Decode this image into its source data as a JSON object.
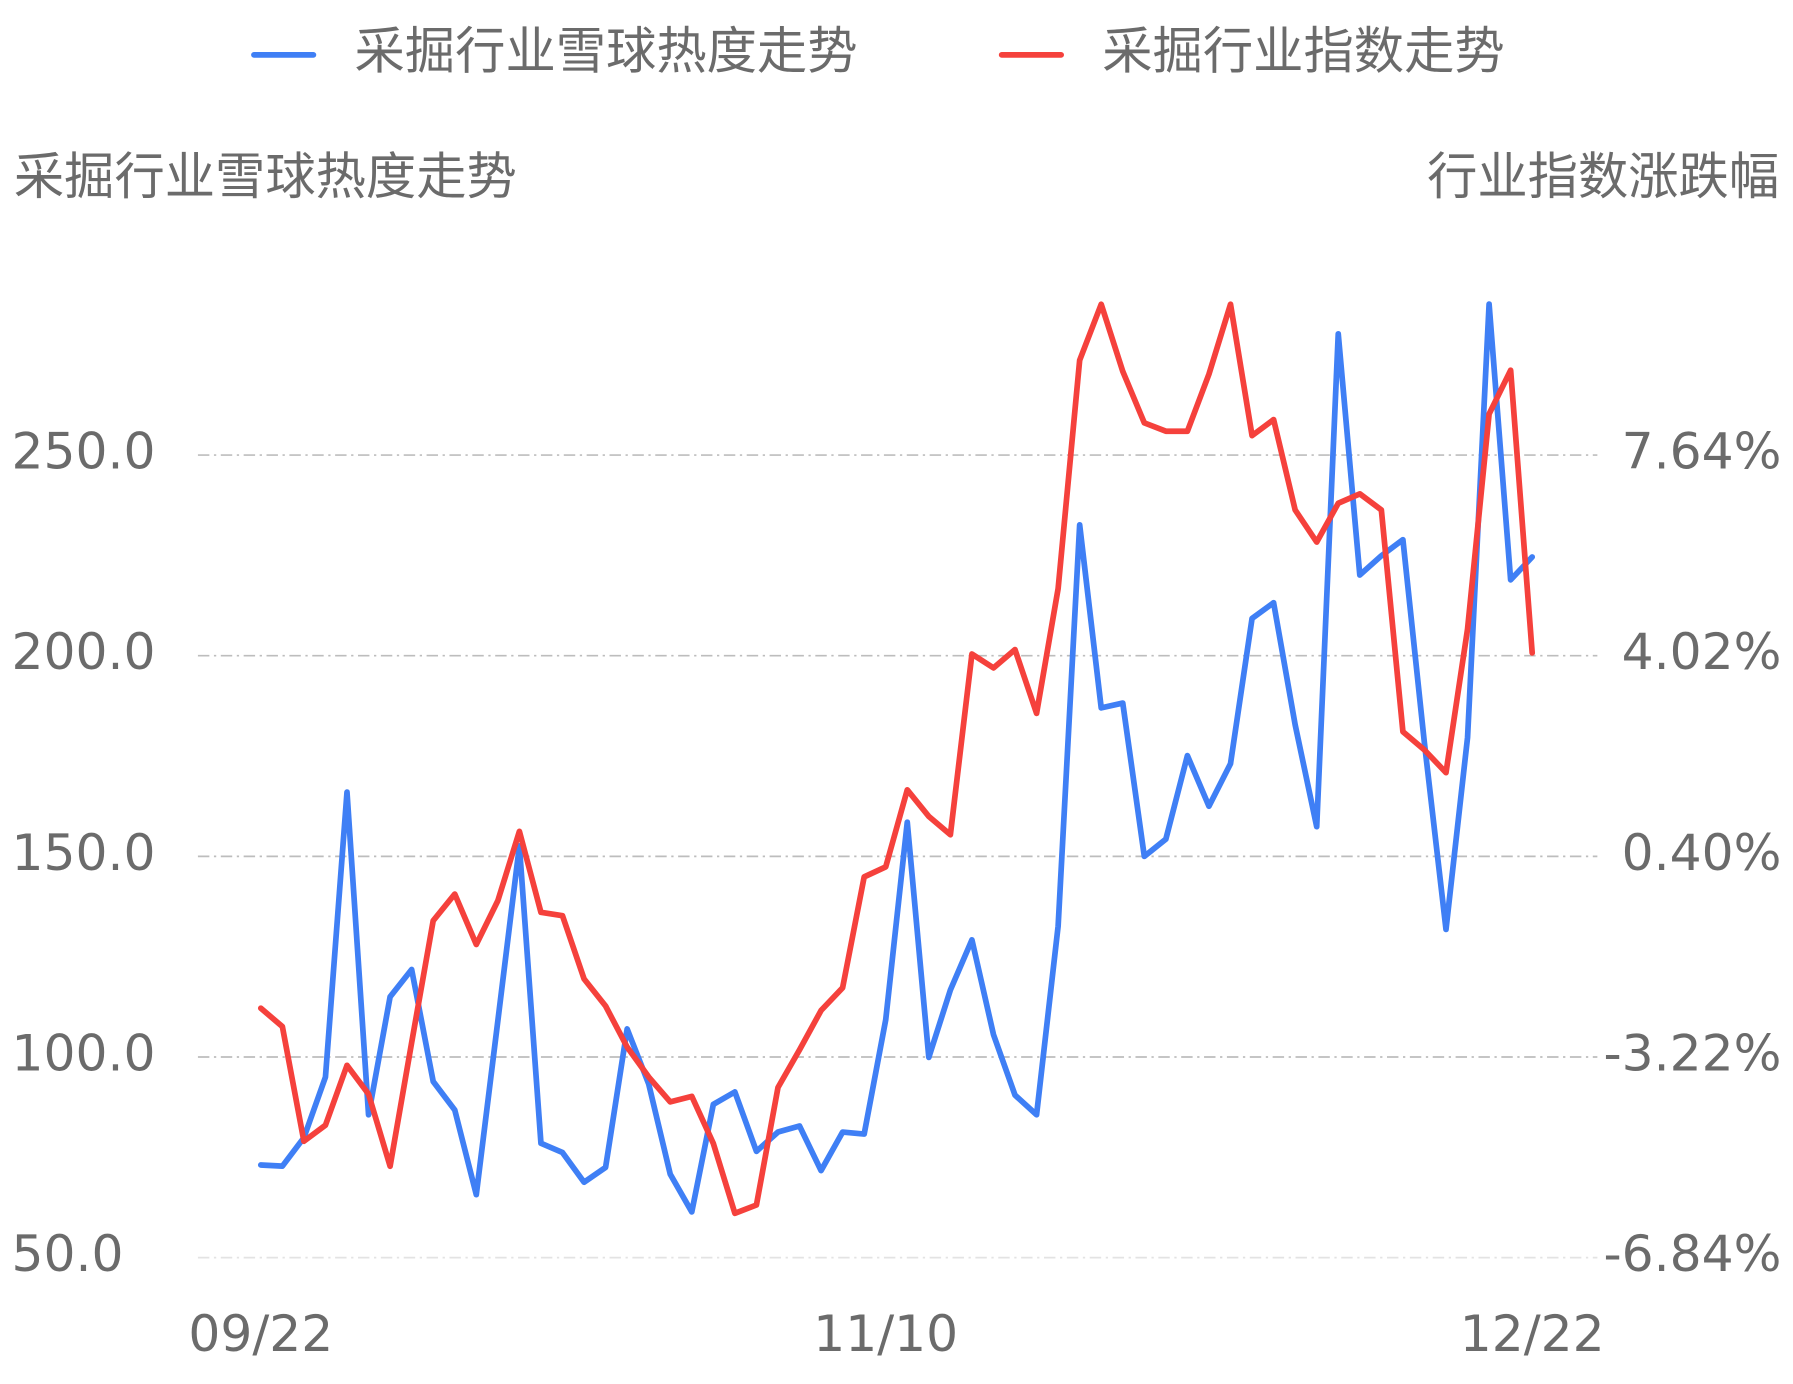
{
  "chart_data": {
    "type": "line",
    "y_label": "采掘行业雪球热度走势",
    "y2_label": "行业指数涨跌幅",
    "categories": [
      "09/22",
      null,
      null,
      null,
      null,
      null,
      null,
      null,
      null,
      null,
      null,
      null,
      null,
      null,
      null,
      null,
      null,
      null,
      null,
      null,
      null,
      null,
      null,
      null,
      null,
      null,
      null,
      null,
      null,
      "11/10",
      null,
      null,
      null,
      null,
      null,
      null,
      null,
      null,
      null,
      null,
      null,
      null,
      null,
      null,
      null,
      null,
      null,
      null,
      null,
      null,
      null,
      null,
      null,
      null,
      null,
      null,
      null,
      null,
      null,
      "12/22"
    ],
    "series": [
      {
        "name": "采掘行业雪球热度走势",
        "color": "#3f7ff5",
        "axis": "y",
        "values": [
          73.1,
          72.8,
          79.9,
          95.0,
          166.0,
          85.6,
          115.0,
          121.8,
          93.9,
          86.8,
          65.7,
          109.0,
          152.6,
          78.5,
          76.2,
          68.8,
          72.5,
          107.0,
          93.3,
          70.8,
          61.4,
          88.2,
          91.3,
          76.5,
          81.3,
          82.8,
          71.7,
          81.3,
          80.8,
          109.3,
          158.5,
          99.9,
          116.7,
          129.2,
          105.6,
          90.5,
          85.6,
          132.6,
          232.6,
          187.0,
          188.2,
          150.0,
          154.3,
          175.1,
          162.5,
          173.1,
          209.3,
          213.2,
          182.8,
          157.4,
          280.2,
          220.1,
          224.9,
          228.9,
          178.2,
          131.8,
          179.6,
          287.6,
          218.9,
          224.6
        ]
      },
      {
        "name": "采掘行业指数走势",
        "color": "#f5413c",
        "axis": "y2",
        "values": [
          -2.34,
          -2.67,
          -4.74,
          -4.45,
          -3.37,
          -3.89,
          -5.19,
          -2.96,
          -0.76,
          -0.28,
          -1.19,
          -0.4,
          0.85,
          -0.61,
          -0.67,
          -1.81,
          -2.3,
          -3.04,
          -3.58,
          -4.03,
          -3.93,
          -4.78,
          -6.04,
          -5.89,
          -3.77,
          -3.09,
          -2.38,
          -1.97,
          0.03,
          0.21,
          1.6,
          1.12,
          0.79,
          4.05,
          3.8,
          4.13,
          2.98,
          5.23,
          9.35,
          10.36,
          9.15,
          8.22,
          8.07,
          8.07,
          9.1,
          10.36,
          7.99,
          8.28,
          6.65,
          6.07,
          6.77,
          6.94,
          6.65,
          2.65,
          2.32,
          1.91,
          4.5,
          8.38,
          9.17,
          4.07
        ]
      }
    ],
    "ylim": [
      50,
      300
    ],
    "yticks": [
      {
        "value": 50,
        "label": "50.0"
      },
      {
        "value": 100,
        "label": "100.0"
      },
      {
        "value": 150,
        "label": "150.0"
      },
      {
        "value": 200,
        "label": "200.0"
      },
      {
        "value": 250,
        "label": "250.0"
      }
    ],
    "y2lim": [
      -6.84,
      11.26
    ],
    "y2ticks": [
      {
        "value": -6.84,
        "label": "-6.84%"
      },
      {
        "value": -3.22,
        "label": "-3.22%"
      },
      {
        "value": 0.4,
        "label": "0.40%"
      },
      {
        "value": 4.02,
        "label": "4.02%"
      },
      {
        "value": 7.64,
        "label": "7.64%"
      }
    ],
    "grid": true,
    "legend": "top"
  }
}
